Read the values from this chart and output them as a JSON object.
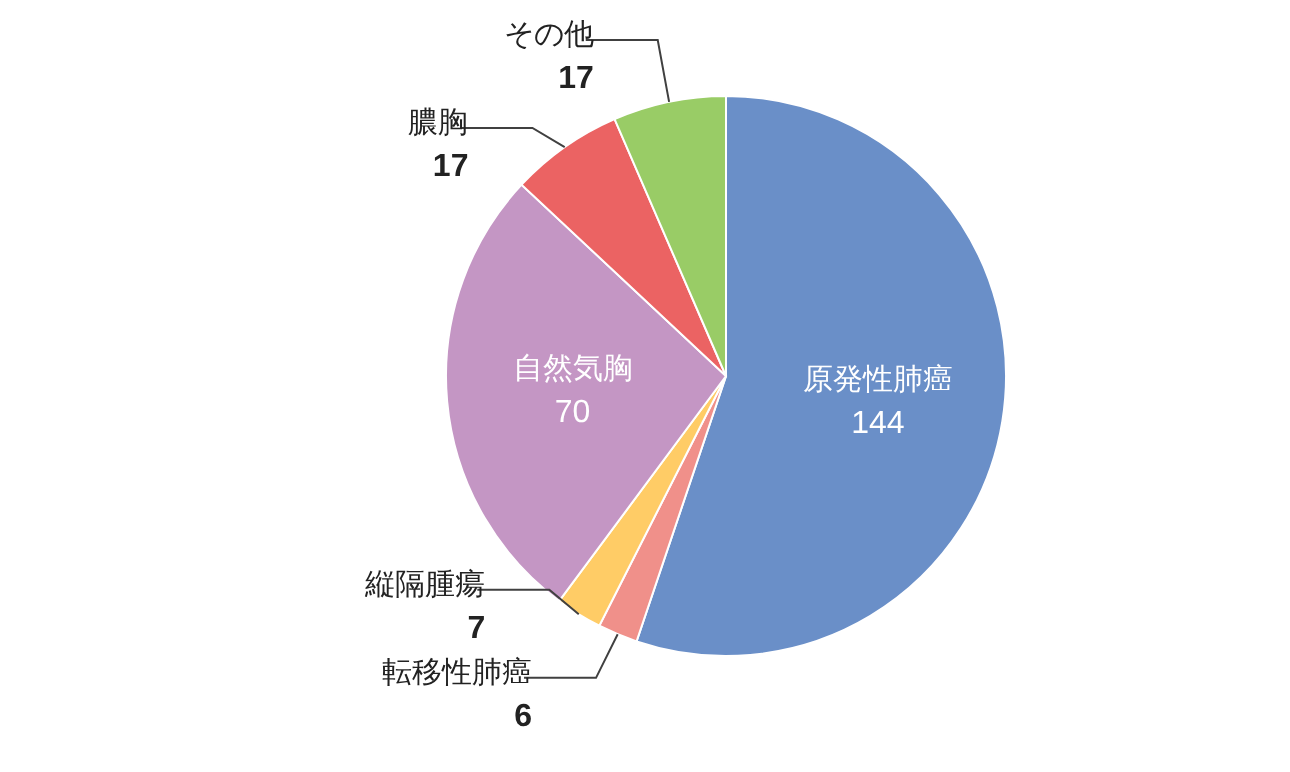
{
  "chart_data": {
    "type": "pie",
    "categories": [
      "原発性肺癌",
      "転移性肺癌",
      "縦隔腫瘍",
      "自然気胸",
      "膿胸",
      "その他"
    ],
    "values": [
      144,
      6,
      7,
      70,
      17,
      17
    ],
    "colors": [
      "#6a8fc8",
      "#f0908a",
      "#ffcc66",
      "#c496c4",
      "#eb6363",
      "#99cc66"
    ],
    "data_labels": true
  }
}
